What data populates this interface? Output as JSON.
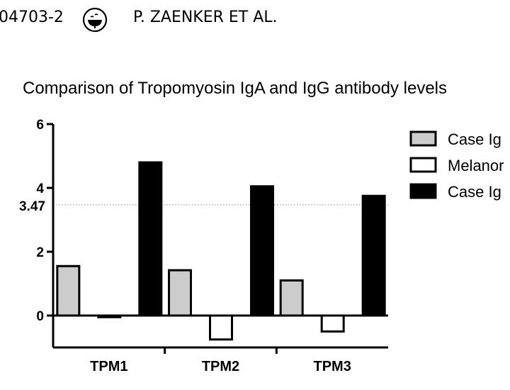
{
  "header": {
    "doc_id": "04703-2",
    "authors": "P. ZAENKER ET AL."
  },
  "colors": {
    "case_iga": "#cccccc",
    "melanoma": "#ffffff",
    "case_igg": "#000000",
    "reference_line": "#999999"
  },
  "chart_data": {
    "type": "bar",
    "title": "Comparison of Tropomyosin IgA and IgG antibody levels",
    "xlabel": "",
    "ylabel": "",
    "categories": [
      "TPM1",
      "TPM2",
      "TPM3"
    ],
    "series": [
      {
        "name": "Case Ig",
        "values": [
          1.55,
          1.42,
          1.1
        ]
      },
      {
        "name": "Melanor",
        "values": [
          -0.05,
          -0.75,
          -0.5
        ]
      },
      {
        "name": "Case Ig",
        "values": [
          4.8,
          4.05,
          3.75
        ]
      }
    ],
    "ylim": [
      -1,
      6
    ],
    "yticks": [
      0,
      2,
      4,
      6
    ],
    "reference_line": {
      "value": 3.47,
      "label": "3.47"
    },
    "grid": false,
    "legend_position": "right"
  }
}
